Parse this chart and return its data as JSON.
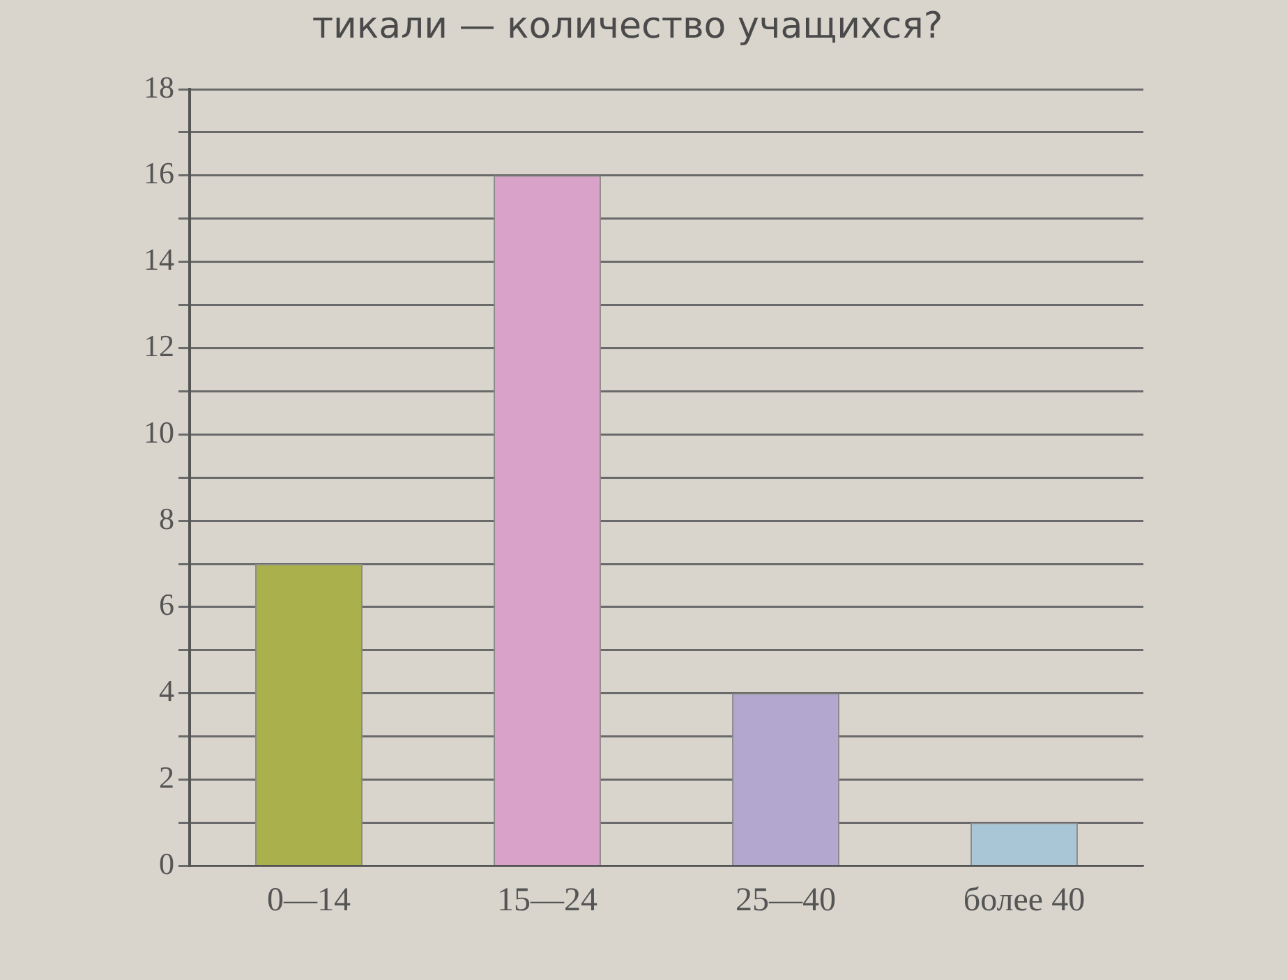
{
  "chart_data": {
    "type": "bar",
    "title": "тикали — количество учащихся?",
    "categories": [
      "0—14",
      "15—24",
      "25—40",
      "более 40"
    ],
    "values": [
      7,
      16,
      4,
      1
    ],
    "colors": [
      "#a9b04c",
      "#d8a2c9",
      "#b3a7cf",
      "#a9c6d6"
    ],
    "ylim": [
      0,
      18
    ],
    "yticks": [
      0,
      {
        "value": 1,
        "label": null
      },
      2,
      {
        "value": 3,
        "label": null
      },
      4,
      {
        "value": 5,
        "label": null
      },
      6,
      {
        "value": 7,
        "label": null
      },
      8,
      {
        "value": 9,
        "label": null
      },
      10,
      {
        "value": 11,
        "label": null
      },
      12,
      {
        "value": 13,
        "label": null
      },
      14,
      {
        "value": 15,
        "label": null
      },
      16,
      {
        "value": 17,
        "label": null
      },
      18
    ],
    "grid": "y",
    "legend": false
  }
}
